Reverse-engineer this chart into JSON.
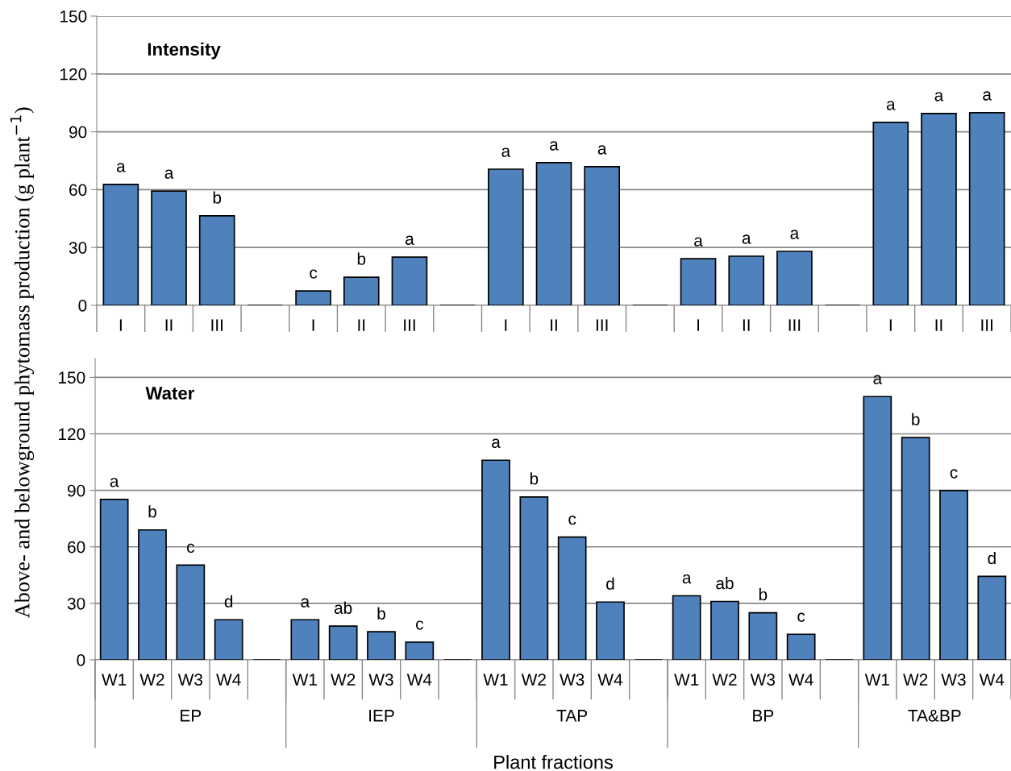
{
  "chart_data": [
    {
      "type": "bar",
      "title": "Intensity",
      "ylabel": "Above- and belowground phytomass production (g plant$^{−1}$)",
      "categories": [
        "I",
        "II",
        "III",
        null,
        "I",
        "II",
        "III",
        null,
        "I",
        "II",
        "III",
        null,
        "I",
        "II",
        "III",
        null,
        "I",
        "II",
        "III"
      ],
      "values": [
        62.7,
        59.3,
        46.4,
        null,
        7.5,
        14.6,
        25.0,
        null,
        70.6,
        74.0,
        71.9,
        null,
        24.2,
        25.5,
        28.0,
        null,
        94.9,
        99.5,
        99.9
      ],
      "value_labels": [
        "a",
        "a",
        "b",
        null,
        "c",
        "b",
        "a",
        null,
        "a",
        "a",
        "a",
        null,
        "a",
        "a",
        "a",
        null,
        "a",
        "a",
        "a"
      ],
      "color": "#4f81bd",
      "ylim": [
        0,
        150
      ],
      "yticks": [
        0,
        30,
        60,
        90,
        120,
        150
      ],
      "grid": "y"
    },
    {
      "type": "bar",
      "title": "Water",
      "xlabel": "Plant fractions",
      "categories": [
        "W1",
        "W2",
        "W3",
        "W4",
        null,
        "W1",
        "W2",
        "W3",
        "W4",
        null,
        "W1",
        "W2",
        "W3",
        "W4",
        null,
        "W1",
        "W2",
        "W3",
        "W4",
        null,
        "W1",
        "W2",
        "W3",
        "W4"
      ],
      "values": [
        85.2,
        69.0,
        50.3,
        21.3,
        null,
        21.3,
        17.9,
        14.9,
        9.4,
        null,
        106.0,
        86.5,
        65.2,
        30.7,
        null,
        34.0,
        31.0,
        25.0,
        13.6,
        null,
        139.8,
        118.0,
        89.9,
        44.3
      ],
      "value_labels": [
        "a",
        "b",
        "c",
        "d",
        null,
        "a",
        "ab",
        "b",
        "c",
        null,
        "a",
        "b",
        "c",
        "d",
        null,
        "a",
        "ab",
        "b",
        "c",
        null,
        "a",
        "b",
        "c",
        "d"
      ],
      "annotations": [
        "EP",
        "IEP",
        "TAP",
        "BP",
        "TA&BP"
      ],
      "color": "#4f81bd",
      "ylim": [
        0,
        160
      ],
      "yticks": [
        0,
        30,
        60,
        90,
        120,
        150
      ],
      "grid": "y"
    }
  ]
}
